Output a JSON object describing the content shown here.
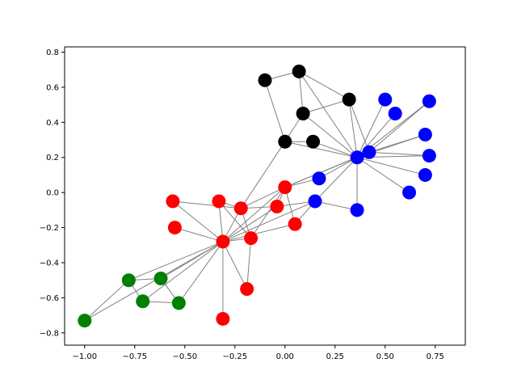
{
  "chart_data": {
    "type": "scatter",
    "title": "",
    "xlabel": "",
    "ylabel": "",
    "xlim": [
      -1.1,
      0.9
    ],
    "ylim": [
      -0.87,
      0.83
    ],
    "grid": false,
    "x_ticks": [
      -1.0,
      -0.75,
      -0.5,
      -0.25,
      0.0,
      0.25,
      0.5,
      0.75
    ],
    "x_tick_labels": [
      "−1.00",
      "−0.75",
      "−0.50",
      "−0.25",
      "0.00",
      "0.25",
      "0.50",
      "0.75"
    ],
    "y_ticks": [
      -0.8,
      -0.6,
      -0.4,
      -0.2,
      0.0,
      0.2,
      0.4,
      0.6,
      0.8
    ],
    "y_tick_labels": [
      "−0.8",
      "−0.6",
      "−0.4",
      "−0.2",
      "0.0",
      "0.2",
      "0.4",
      "0.6",
      "0.8"
    ],
    "edge_color": "#808080",
    "nodes": [
      {
        "x": -0.1,
        "y": 0.64,
        "color": "#000000"
      },
      {
        "x": 0.07,
        "y": 0.69,
        "color": "#000000"
      },
      {
        "x": 0.32,
        "y": 0.53,
        "color": "#000000"
      },
      {
        "x": 0.09,
        "y": 0.45,
        "color": "#000000"
      },
      {
        "x": 0.0,
        "y": 0.29,
        "color": "#000000"
      },
      {
        "x": 0.14,
        "y": 0.29,
        "color": "#000000"
      },
      {
        "x": 0.5,
        "y": 0.53,
        "color": "#0000ff"
      },
      {
        "x": 0.72,
        "y": 0.52,
        "color": "#0000ff"
      },
      {
        "x": 0.55,
        "y": 0.45,
        "color": "#0000ff"
      },
      {
        "x": 0.7,
        "y": 0.33,
        "color": "#0000ff"
      },
      {
        "x": 0.42,
        "y": 0.23,
        "color": "#0000ff"
      },
      {
        "x": 0.36,
        "y": 0.2,
        "color": "#0000ff"
      },
      {
        "x": 0.72,
        "y": 0.21,
        "color": "#0000ff"
      },
      {
        "x": 0.7,
        "y": 0.1,
        "color": "#0000ff"
      },
      {
        "x": 0.17,
        "y": 0.08,
        "color": "#0000ff"
      },
      {
        "x": 0.62,
        "y": 0.0,
        "color": "#0000ff"
      },
      {
        "x": 0.15,
        "y": -0.05,
        "color": "#0000ff"
      },
      {
        "x": 0.36,
        "y": -0.1,
        "color": "#0000ff"
      },
      {
        "x": 0.0,
        "y": 0.03,
        "color": "#ff0000"
      },
      {
        "x": -0.56,
        "y": -0.05,
        "color": "#ff0000"
      },
      {
        "x": -0.33,
        "y": -0.05,
        "color": "#ff0000"
      },
      {
        "x": -0.22,
        "y": -0.09,
        "color": "#ff0000"
      },
      {
        "x": -0.04,
        "y": -0.08,
        "color": "#ff0000"
      },
      {
        "x": -0.55,
        "y": -0.2,
        "color": "#ff0000"
      },
      {
        "x": 0.05,
        "y": -0.18,
        "color": "#ff0000"
      },
      {
        "x": -0.17,
        "y": -0.26,
        "color": "#ff0000"
      },
      {
        "x": -0.31,
        "y": -0.28,
        "color": "#ff0000"
      },
      {
        "x": -0.19,
        "y": -0.55,
        "color": "#ff0000"
      },
      {
        "x": -0.31,
        "y": -0.72,
        "color": "#ff0000"
      },
      {
        "x": -0.78,
        "y": -0.5,
        "color": "#008000"
      },
      {
        "x": -0.62,
        "y": -0.49,
        "color": "#008000"
      },
      {
        "x": -0.71,
        "y": -0.62,
        "color": "#008000"
      },
      {
        "x": -0.53,
        "y": -0.63,
        "color": "#008000"
      },
      {
        "x": -1.0,
        "y": -0.73,
        "color": "#008000"
      }
    ],
    "edges": [
      [
        0,
        1
      ],
      [
        0,
        4
      ],
      [
        1,
        3
      ],
      [
        1,
        2
      ],
      [
        1,
        11
      ],
      [
        2,
        3
      ],
      [
        2,
        11
      ],
      [
        2,
        10
      ],
      [
        3,
        4
      ],
      [
        3,
        11
      ],
      [
        4,
        5
      ],
      [
        4,
        11
      ],
      [
        4,
        21
      ],
      [
        5,
        11
      ],
      [
        6,
        11
      ],
      [
        7,
        10
      ],
      [
        7,
        11
      ],
      [
        8,
        11
      ],
      [
        9,
        10
      ],
      [
        9,
        11
      ],
      [
        12,
        10
      ],
      [
        12,
        11
      ],
      [
        13,
        11
      ],
      [
        14,
        11
      ],
      [
        15,
        11
      ],
      [
        16,
        11
      ],
      [
        16,
        17
      ],
      [
        11,
        17
      ],
      [
        11,
        10
      ],
      [
        18,
        11
      ],
      [
        18,
        10
      ],
      [
        18,
        14
      ],
      [
        18,
        22
      ],
      [
        18,
        24
      ],
      [
        18,
        25
      ],
      [
        18,
        21
      ],
      [
        18,
        26
      ],
      [
        22,
        16
      ],
      [
        24,
        16
      ],
      [
        16,
        26
      ],
      [
        19,
        21
      ],
      [
        19,
        26
      ],
      [
        20,
        21
      ],
      [
        20,
        26
      ],
      [
        20,
        25
      ],
      [
        21,
        22
      ],
      [
        21,
        26
      ],
      [
        23,
        26
      ],
      [
        22,
        26
      ],
      [
        24,
        26
      ],
      [
        25,
        26
      ],
      [
        25,
        27
      ],
      [
        26,
        27
      ],
      [
        26,
        28
      ],
      [
        26,
        29
      ],
      [
        26,
        30
      ],
      [
        26,
        31
      ],
      [
        26,
        32
      ],
      [
        26,
        33
      ],
      [
        29,
        30
      ],
      [
        29,
        31
      ],
      [
        29,
        33
      ],
      [
        30,
        32
      ],
      [
        31,
        32
      ],
      [
        21,
        25
      ]
    ]
  }
}
